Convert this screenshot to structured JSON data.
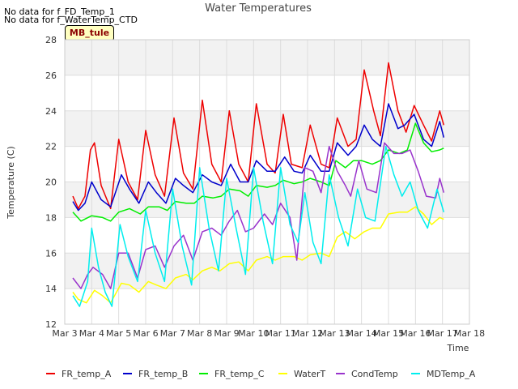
{
  "notes": [
    "No data for f_FD_Temp_1",
    "No data for f_WaterTemp_CTD"
  ],
  "site_label": "MB_tule",
  "chart_data": {
    "type": "line",
    "title": "Water Temperatures",
    "xlabel": "Time",
    "ylabel": "Temperature (C)",
    "xlim": [
      3,
      18
    ],
    "ylim": [
      12,
      28
    ],
    "x_ticks": [
      3,
      4,
      5,
      6,
      7,
      8,
      9,
      10,
      11,
      12,
      13,
      14,
      15,
      16,
      17,
      18
    ],
    "x_tick_labels": [
      "Mar 3",
      "Mar 4",
      "Mar 5",
      "Mar 6",
      "Mar 7",
      "Mar 8",
      "Mar 9",
      "Mar 10",
      "Mar 11",
      "Mar 12",
      "Mar 13",
      "Mar 14",
      "Mar 15",
      "Mar 16",
      "Mar 17",
      "Mar 18"
    ],
    "y_ticks": [
      12,
      14,
      16,
      18,
      20,
      22,
      24,
      26,
      28
    ],
    "grid": true,
    "band_colors": [
      "#f2f2f2",
      "#ffffff"
    ],
    "legend_position": "bottom",
    "series": [
      {
        "name": "FR_temp_A",
        "color": "#ee0000",
        "points": [
          [
            3.3,
            19.2
          ],
          [
            3.5,
            18.5
          ],
          [
            3.75,
            19.2
          ],
          [
            3.95,
            21.8
          ],
          [
            4.1,
            22.2
          ],
          [
            4.35,
            19.8
          ],
          [
            4.7,
            18.5
          ],
          [
            5.0,
            22.4
          ],
          [
            5.35,
            20.0
          ],
          [
            5.7,
            19.0
          ],
          [
            6.0,
            22.9
          ],
          [
            6.35,
            20.4
          ],
          [
            6.7,
            19.2
          ],
          [
            7.05,
            23.6
          ],
          [
            7.4,
            20.5
          ],
          [
            7.75,
            19.6
          ],
          [
            8.1,
            24.6
          ],
          [
            8.45,
            21.0
          ],
          [
            8.8,
            20.0
          ],
          [
            9.1,
            24.0
          ],
          [
            9.45,
            21.0
          ],
          [
            9.8,
            20.0
          ],
          [
            10.1,
            24.4
          ],
          [
            10.5,
            21.0
          ],
          [
            10.8,
            20.5
          ],
          [
            11.1,
            23.8
          ],
          [
            11.4,
            21.0
          ],
          [
            11.8,
            20.8
          ],
          [
            12.1,
            23.2
          ],
          [
            12.5,
            21.0
          ],
          [
            12.8,
            20.8
          ],
          [
            13.1,
            23.6
          ],
          [
            13.5,
            22.0
          ],
          [
            13.8,
            22.4
          ],
          [
            14.1,
            26.3
          ],
          [
            14.45,
            24.0
          ],
          [
            14.7,
            22.6
          ],
          [
            15.0,
            26.7
          ],
          [
            15.35,
            24.0
          ],
          [
            15.65,
            22.8
          ],
          [
            15.95,
            24.3
          ],
          [
            16.3,
            23.2
          ],
          [
            16.6,
            22.3
          ],
          [
            16.9,
            24.0
          ],
          [
            17.05,
            23.2
          ]
        ]
      },
      {
        "name": "FR_temp_B",
        "color": "#0000cc",
        "points": [
          [
            3.3,
            18.9
          ],
          [
            3.5,
            18.4
          ],
          [
            3.75,
            18.8
          ],
          [
            4.0,
            20.0
          ],
          [
            4.35,
            19.0
          ],
          [
            4.7,
            18.6
          ],
          [
            5.1,
            20.4
          ],
          [
            5.4,
            19.6
          ],
          [
            5.75,
            18.8
          ],
          [
            6.1,
            20.0
          ],
          [
            6.4,
            19.4
          ],
          [
            6.75,
            18.8
          ],
          [
            7.1,
            20.2
          ],
          [
            7.4,
            19.8
          ],
          [
            7.75,
            19.4
          ],
          [
            8.1,
            20.4
          ],
          [
            8.45,
            20.0
          ],
          [
            8.8,
            19.8
          ],
          [
            9.15,
            21.0
          ],
          [
            9.5,
            20.0
          ],
          [
            9.8,
            20.0
          ],
          [
            10.1,
            21.2
          ],
          [
            10.5,
            20.6
          ],
          [
            10.8,
            20.6
          ],
          [
            11.15,
            21.4
          ],
          [
            11.5,
            20.6
          ],
          [
            11.8,
            20.5
          ],
          [
            12.1,
            21.5
          ],
          [
            12.5,
            20.6
          ],
          [
            12.8,
            20.6
          ],
          [
            13.1,
            22.2
          ],
          [
            13.5,
            21.5
          ],
          [
            13.8,
            22.0
          ],
          [
            14.1,
            23.2
          ],
          [
            14.4,
            22.4
          ],
          [
            14.7,
            22.0
          ],
          [
            15.0,
            24.4
          ],
          [
            15.35,
            23.0
          ],
          [
            15.6,
            23.2
          ],
          [
            15.95,
            23.8
          ],
          [
            16.3,
            22.4
          ],
          [
            16.6,
            22.0
          ],
          [
            16.9,
            23.4
          ],
          [
            17.05,
            22.5
          ]
        ]
      },
      {
        "name": "FR_temp_C",
        "color": "#00ee00",
        "points": [
          [
            3.3,
            18.3
          ],
          [
            3.6,
            17.8
          ],
          [
            4.0,
            18.1
          ],
          [
            4.4,
            18.0
          ],
          [
            4.7,
            17.8
          ],
          [
            5.0,
            18.3
          ],
          [
            5.4,
            18.5
          ],
          [
            5.8,
            18.2
          ],
          [
            6.1,
            18.6
          ],
          [
            6.5,
            18.6
          ],
          [
            6.8,
            18.4
          ],
          [
            7.1,
            18.9
          ],
          [
            7.5,
            18.8
          ],
          [
            7.8,
            18.8
          ],
          [
            8.1,
            19.2
          ],
          [
            8.5,
            19.1
          ],
          [
            8.8,
            19.2
          ],
          [
            9.1,
            19.6
          ],
          [
            9.5,
            19.5
          ],
          [
            9.8,
            19.2
          ],
          [
            10.1,
            19.8
          ],
          [
            10.5,
            19.7
          ],
          [
            10.8,
            19.8
          ],
          [
            11.1,
            20.1
          ],
          [
            11.5,
            19.9
          ],
          [
            11.8,
            20.0
          ],
          [
            12.1,
            20.2
          ],
          [
            12.5,
            20.0
          ],
          [
            12.8,
            19.8
          ],
          [
            13.05,
            21.2
          ],
          [
            13.4,
            20.8
          ],
          [
            13.7,
            21.2
          ],
          [
            14.0,
            21.2
          ],
          [
            14.4,
            21.0
          ],
          [
            14.7,
            21.2
          ],
          [
            15.0,
            21.8
          ],
          [
            15.4,
            21.6
          ],
          [
            15.7,
            21.8
          ],
          [
            16.0,
            23.3
          ],
          [
            16.3,
            22.2
          ],
          [
            16.6,
            21.7
          ],
          [
            16.9,
            21.8
          ],
          [
            17.05,
            21.9
          ]
        ]
      },
      {
        "name": "WaterT",
        "color": "#ffff00",
        "points": [
          [
            3.3,
            13.8
          ],
          [
            3.5,
            13.4
          ],
          [
            3.8,
            13.2
          ],
          [
            4.1,
            13.9
          ],
          [
            4.4,
            13.6
          ],
          [
            4.7,
            13.2
          ],
          [
            5.1,
            14.3
          ],
          [
            5.4,
            14.2
          ],
          [
            5.75,
            13.8
          ],
          [
            6.1,
            14.4
          ],
          [
            6.4,
            14.2
          ],
          [
            6.75,
            14.0
          ],
          [
            7.1,
            14.6
          ],
          [
            7.5,
            14.8
          ],
          [
            7.75,
            14.5
          ],
          [
            8.1,
            15.0
          ],
          [
            8.45,
            15.2
          ],
          [
            8.75,
            15.0
          ],
          [
            9.1,
            15.4
          ],
          [
            9.45,
            15.5
          ],
          [
            9.8,
            15.0
          ],
          [
            10.1,
            15.6
          ],
          [
            10.5,
            15.8
          ],
          [
            10.8,
            15.6
          ],
          [
            11.1,
            15.8
          ],
          [
            11.5,
            15.8
          ],
          [
            11.8,
            15.6
          ],
          [
            12.1,
            15.9
          ],
          [
            12.5,
            16.0
          ],
          [
            12.8,
            15.8
          ],
          [
            13.1,
            16.9
          ],
          [
            13.4,
            17.2
          ],
          [
            13.75,
            16.8
          ],
          [
            14.1,
            17.2
          ],
          [
            14.4,
            17.4
          ],
          [
            14.7,
            17.4
          ],
          [
            15.0,
            18.2
          ],
          [
            15.4,
            18.3
          ],
          [
            15.7,
            18.3
          ],
          [
            16.0,
            18.6
          ],
          [
            16.3,
            18.2
          ],
          [
            16.6,
            17.6
          ],
          [
            16.9,
            18.0
          ],
          [
            17.05,
            17.9
          ]
        ]
      },
      {
        "name": "CondTemp",
        "color": "#9933cc",
        "points": [
          [
            3.3,
            14.6
          ],
          [
            3.6,
            14.0
          ],
          [
            3.85,
            14.8
          ],
          [
            4.05,
            15.2
          ],
          [
            4.4,
            14.8
          ],
          [
            4.7,
            14.0
          ],
          [
            5.0,
            16.0
          ],
          [
            5.35,
            16.0
          ],
          [
            5.7,
            14.6
          ],
          [
            6.0,
            16.2
          ],
          [
            6.35,
            16.4
          ],
          [
            6.7,
            15.2
          ],
          [
            7.05,
            16.4
          ],
          [
            7.4,
            17.0
          ],
          [
            7.75,
            15.6
          ],
          [
            8.1,
            17.2
          ],
          [
            8.45,
            17.4
          ],
          [
            8.8,
            17.0
          ],
          [
            9.1,
            17.8
          ],
          [
            9.4,
            18.4
          ],
          [
            9.7,
            17.2
          ],
          [
            10.0,
            17.4
          ],
          [
            10.4,
            18.2
          ],
          [
            10.7,
            17.6
          ],
          [
            11.0,
            18.8
          ],
          [
            11.35,
            18.0
          ],
          [
            11.6,
            15.6
          ],
          [
            11.9,
            20.8
          ],
          [
            12.2,
            20.6
          ],
          [
            12.5,
            19.4
          ],
          [
            12.8,
            22.0
          ],
          [
            13.1,
            20.6
          ],
          [
            13.4,
            19.8
          ],
          [
            13.6,
            19.2
          ],
          [
            13.9,
            21.2
          ],
          [
            14.2,
            19.6
          ],
          [
            14.55,
            19.4
          ],
          [
            14.85,
            22.2
          ],
          [
            15.2,
            21.6
          ],
          [
            15.5,
            21.6
          ],
          [
            15.8,
            21.8
          ],
          [
            16.1,
            20.6
          ],
          [
            16.4,
            19.2
          ],
          [
            16.75,
            19.1
          ],
          [
            16.9,
            20.2
          ],
          [
            17.05,
            19.4
          ]
        ]
      },
      {
        "name": "MDTemp_A",
        "color": "#00eeee",
        "points": [
          [
            3.3,
            13.6
          ],
          [
            3.55,
            13.0
          ],
          [
            3.85,
            14.4
          ],
          [
            4.0,
            17.4
          ],
          [
            4.25,
            15.2
          ],
          [
            4.5,
            13.8
          ],
          [
            4.75,
            13.0
          ],
          [
            5.05,
            17.6
          ],
          [
            5.35,
            15.8
          ],
          [
            5.7,
            14.4
          ],
          [
            6.0,
            18.4
          ],
          [
            6.35,
            16.0
          ],
          [
            6.7,
            14.4
          ],
          [
            7.0,
            19.6
          ],
          [
            7.35,
            16.4
          ],
          [
            7.7,
            14.2
          ],
          [
            8.0,
            20.8
          ],
          [
            8.35,
            17.4
          ],
          [
            8.7,
            15.0
          ],
          [
            9.0,
            20.2
          ],
          [
            9.35,
            17.4
          ],
          [
            9.7,
            14.8
          ],
          [
            10.0,
            20.8
          ],
          [
            10.35,
            17.8
          ],
          [
            10.7,
            15.4
          ],
          [
            11.0,
            20.8
          ],
          [
            11.35,
            17.6
          ],
          [
            11.65,
            16.6
          ],
          [
            11.9,
            19.4
          ],
          [
            12.2,
            16.6
          ],
          [
            12.5,
            15.4
          ],
          [
            12.8,
            20.4
          ],
          [
            13.15,
            18.0
          ],
          [
            13.5,
            16.4
          ],
          [
            13.85,
            19.6
          ],
          [
            14.15,
            18.0
          ],
          [
            14.5,
            17.8
          ],
          [
            14.9,
            22.0
          ],
          [
            15.2,
            20.4
          ],
          [
            15.5,
            19.2
          ],
          [
            15.8,
            20.0
          ],
          [
            16.1,
            18.4
          ],
          [
            16.45,
            17.4
          ],
          [
            16.8,
            19.6
          ],
          [
            17.05,
            18.3
          ]
        ]
      }
    ]
  }
}
